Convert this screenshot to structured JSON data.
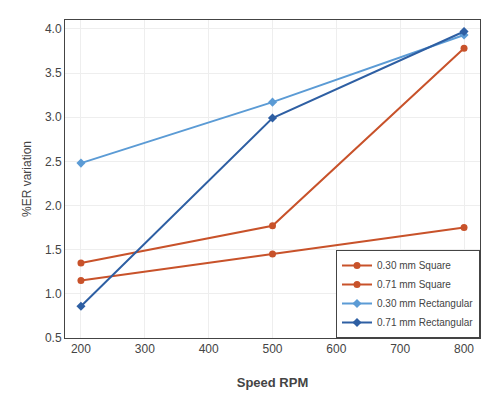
{
  "chart_data": {
    "type": "line",
    "x": [
      200,
      500,
      800
    ],
    "series": [
      {
        "name": "0.30 mm Square",
        "values": [
          1.15,
          1.45,
          1.75
        ],
        "color": "#c8522a",
        "marker": "circle",
        "line_style": "solid"
      },
      {
        "name": "0.71 mm Square",
        "values": [
          1.35,
          1.77,
          3.78
        ],
        "color": "#c8522a",
        "marker": "circle",
        "line_style": "solid"
      },
      {
        "name": "0.30 mm Rectangular",
        "values": [
          2.48,
          3.17,
          3.93
        ],
        "color": "#5b9bd5",
        "marker": "diamond",
        "line_style": "solid"
      },
      {
        "name": "0.71 mm Rectangular",
        "values": [
          0.86,
          2.99,
          3.97
        ],
        "color": "#2e5fa3",
        "marker": "diamond",
        "line_style": "solid"
      }
    ],
    "x_label": "Speed RPM",
    "y_label": "%ER variation",
    "xlim": [
      175,
      825
    ],
    "ylim": [
      0.5,
      4.1
    ],
    "xticks": [
      200,
      300,
      400,
      500,
      600,
      700,
      800
    ],
    "yticks": [
      0.5,
      {
        "value": 1.0,
        "label": "1.0"
      },
      1.5,
      {
        "value": 2.0,
        "label": "2.0"
      },
      2.5,
      {
        "value": 3.0,
        "label": "3.0"
      },
      3.5,
      {
        "value": 4.0,
        "label": "4.0"
      }
    ],
    "grid": true,
    "legend": "lower right"
  }
}
